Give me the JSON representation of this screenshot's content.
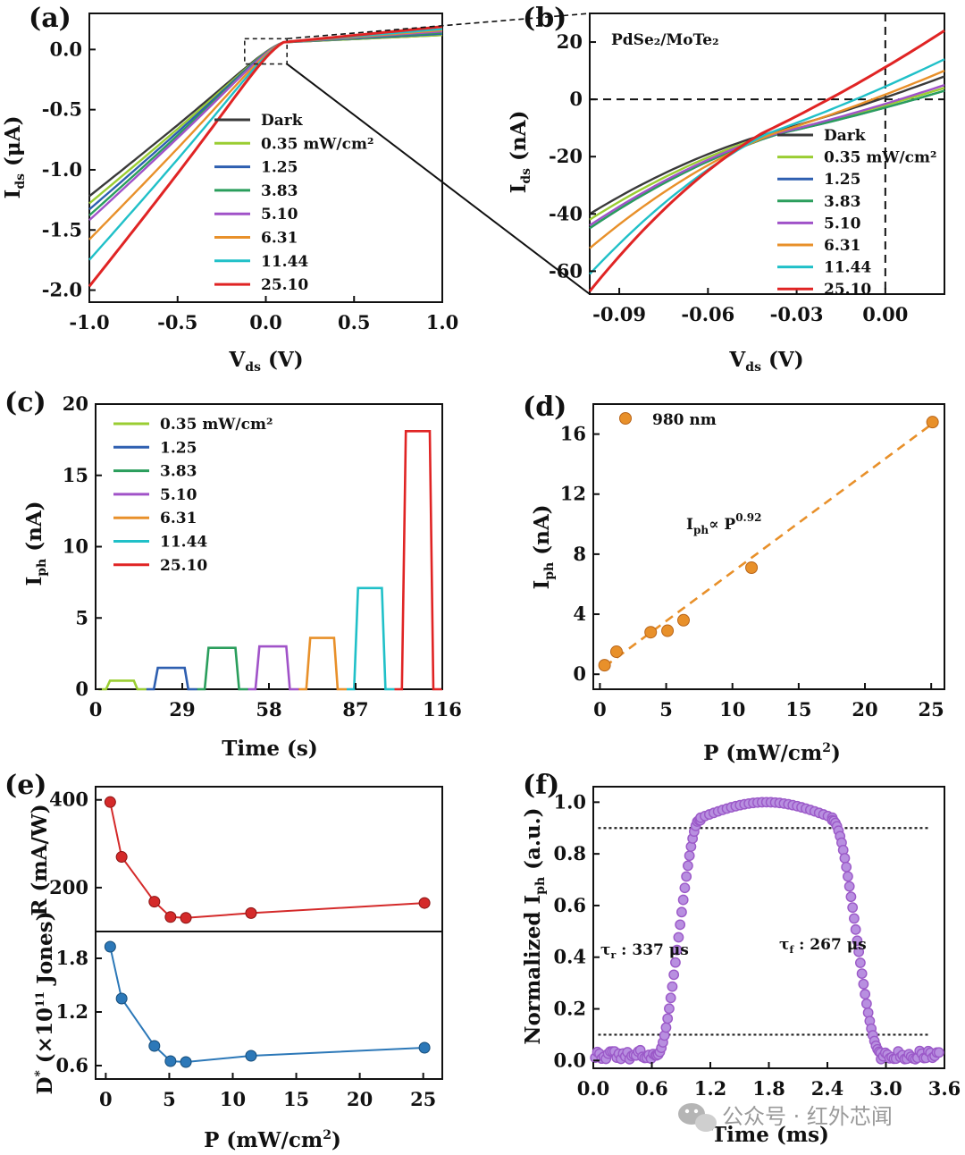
{
  "watermark": "公众号 · 红外芯闻",
  "chart_data": [
    {
      "id": "a",
      "panel_label": "(a)",
      "type": "line",
      "xlabel_main": "V",
      "xlabel_sub": "ds",
      "xlabel_unit": " (V)",
      "ylabel_main": "I",
      "ylabel_sub": "ds",
      "ylabel_unit": " (μA)",
      "xlim": [
        -1.0,
        1.0
      ],
      "ylim": [
        -2.1,
        0.3
      ],
      "xticks": [
        -1.0,
        -0.5,
        0.0,
        0.5,
        1.0
      ],
      "xtick_labels": [
        "-1.0",
        "-0.5",
        "0.0",
        "0.5",
        "1.0"
      ],
      "yticks": [
        0.0,
        -0.5,
        -1.0,
        -1.5,
        -2.0
      ],
      "ytick_labels": [
        "0.0",
        "-0.5",
        "-1.0",
        "-1.5",
        "-2.0"
      ],
      "series": [
        {
          "name": "Dark",
          "color": "#3a3a3a",
          "endpoint": -1.22,
          "end_right": 0.12
        },
        {
          "name": "0.35 mW/cm²",
          "color": "#9acd32",
          "endpoint": -1.28,
          "end_right": 0.12
        },
        {
          "name": "1.25",
          "color": "#2e5fb0",
          "endpoint": -1.33,
          "end_right": 0.13
        },
        {
          "name": "3.83",
          "color": "#2a9e5c",
          "endpoint": -1.38,
          "end_right": 0.14
        },
        {
          "name": "5.10",
          "color": "#a052c8",
          "endpoint": -1.42,
          "end_right": 0.15
        },
        {
          "name": "6.31",
          "color": "#e8902a",
          "endpoint": -1.58,
          "end_right": 0.16
        },
        {
          "name": "11.44",
          "color": "#20c0c8",
          "endpoint": -1.75,
          "end_right": 0.17
        },
        {
          "name": "25.10",
          "color": "#e02424",
          "endpoint": -1.97,
          "end_right": 0.19
        }
      ],
      "zoom_box": {
        "x": [
          -0.12,
          0.12
        ],
        "y": [
          -0.12,
          0.09
        ]
      }
    },
    {
      "id": "b",
      "panel_label": "(b)",
      "type": "line",
      "title": "PdSe₂/MoTe₂",
      "xlabel_main": "V",
      "xlabel_sub": "ds",
      "xlabel_unit": " (V)",
      "ylabel_main": "I",
      "ylabel_sub": "ds",
      "ylabel_unit": " (nA)",
      "xlim": [
        -0.1,
        0.02
      ],
      "ylim": [
        -68,
        30
      ],
      "xticks": [
        -0.09,
        -0.06,
        -0.03,
        0.0
      ],
      "xtick_labels": [
        "-0.09",
        "-0.06",
        "-0.03",
        "0.00"
      ],
      "yticks": [
        20,
        0,
        -20,
        -40,
        -60
      ],
      "ytick_labels": [
        "20",
        "0",
        "-20",
        "-40",
        "-60"
      ],
      "series": [
        {
          "name": "Dark",
          "color": "#3a3a3a",
          "left": -40,
          "cross": -0.04,
          "right": 8
        },
        {
          "name": "0.35 mW/cm²",
          "color": "#9acd32",
          "left": -42,
          "cross": -0.038,
          "right": 4
        },
        {
          "name": "1.25",
          "color": "#2e5fb0",
          "left": -45,
          "cross": -0.036,
          "right": 3
        },
        {
          "name": "3.83",
          "color": "#2a9e5c",
          "left": -45,
          "cross": -0.036,
          "right": 3
        },
        {
          "name": "5.10",
          "color": "#a052c8",
          "left": -44,
          "cross": -0.037,
          "right": 5
        },
        {
          "name": "6.31",
          "color": "#e8902a",
          "left": -52,
          "cross": -0.038,
          "right": 10
        },
        {
          "name": "11.44",
          "color": "#20c0c8",
          "left": -61,
          "cross": -0.04,
          "right": 14
        },
        {
          "name": "25.10",
          "color": "#e02424",
          "left": -67,
          "cross": -0.042,
          "right": 24
        }
      ]
    },
    {
      "id": "c",
      "panel_label": "(c)",
      "type": "line",
      "xlabel_main": "Time (s)",
      "ylabel_main": "I",
      "ylabel_sub": "ph",
      "ylabel_unit": " (nA)",
      "xlim": [
        0,
        116
      ],
      "ylim": [
        0,
        20
      ],
      "xticks": [
        0,
        29,
        58,
        87,
        116
      ],
      "xtick_labels": [
        "0",
        "29",
        "58",
        "87",
        "116"
      ],
      "yticks": [
        0,
        5,
        10,
        15,
        20
      ],
      "ytick_labels": [
        "0",
        "5",
        "10",
        "15",
        "20"
      ],
      "series": [
        {
          "name": "0.35 mW/cm²",
          "color": "#9acd32",
          "on": 4,
          "off": 14,
          "value": 0.6
        },
        {
          "name": "1.25",
          "color": "#2e5fb0",
          "on": 20,
          "off": 31,
          "value": 1.5
        },
        {
          "name": "3.83",
          "color": "#2a9e5c",
          "on": 37,
          "off": 48,
          "value": 2.9
        },
        {
          "name": "5.10",
          "color": "#a052c8",
          "on": 54,
          "off": 65,
          "value": 3.0
        },
        {
          "name": "6.31",
          "color": "#e8902a",
          "on": 71,
          "off": 81,
          "value": 3.6
        },
        {
          "name": "11.44",
          "color": "#20c0c8",
          "on": 87,
          "off": 97,
          "value": 7.1
        },
        {
          "name": "25.10",
          "color": "#e02424",
          "on": 103,
          "off": 113,
          "value": 18.1
        }
      ]
    },
    {
      "id": "d",
      "panel_label": "(d)",
      "type": "scatter",
      "xlabel_main": "P (mW/cm",
      "xlabel_sup": "2",
      "xlabel_unit": ")",
      "ylabel_main": "I",
      "ylabel_sub": "ph",
      "ylabel_unit": " (nA)",
      "xlim": [
        -0.5,
        26
      ],
      "ylim": [
        -1,
        18
      ],
      "xticks": [
        0,
        5,
        10,
        15,
        20,
        25
      ],
      "xtick_labels": [
        "0",
        "5",
        "10",
        "15",
        "20",
        "25"
      ],
      "yticks": [
        0,
        4,
        8,
        12,
        16
      ],
      "ytick_labels": [
        "0",
        "4",
        "8",
        "12",
        "16"
      ],
      "legend": "980 nm",
      "annotation_main": "I",
      "annotation_sub": "ph",
      "annotation_rest": "∝ P",
      "annotation_sup": "0.92",
      "color": "#e8902a",
      "x": [
        0.35,
        1.25,
        3.83,
        5.1,
        6.31,
        11.44,
        25.1
      ],
      "y": [
        0.6,
        1.5,
        2.8,
        2.9,
        3.6,
        7.1,
        16.8
      ],
      "fit": {
        "x": [
          0.35,
          25.1
        ],
        "y": [
          0.5,
          16.7
        ]
      }
    },
    {
      "id": "e",
      "panel_label": "(e)",
      "type": "line",
      "xlabel_main": "P (mW/cm",
      "xlabel_sup": "2",
      "xlabel_unit": ")",
      "xlim": [
        -0.8,
        26.5
      ],
      "xticks": [
        0,
        5,
        10,
        15,
        20,
        25
      ],
      "xtick_labels": [
        "0",
        "5",
        "10",
        "15",
        "20",
        "25"
      ],
      "x": [
        0.35,
        1.25,
        3.83,
        5.1,
        6.31,
        11.44,
        25.1
      ],
      "top": {
        "ylabel": "R (mA/W)",
        "ylim": [
          100,
          430
        ],
        "yticks": [
          400,
          200
        ],
        "ytick_labels": [
          "400",
          "200"
        ],
        "color": "#d42a2a",
        "values": [
          395,
          270,
          168,
          133,
          131,
          142,
          165
        ]
      },
      "bottom": {
        "ylabel_main": "D",
        "ylabel_sup_star": "*",
        "ylabel_rest": " (×10",
        "ylabel_sup": "11",
        "ylabel_end": " Jones)",
        "ylim": [
          0.45,
          2.1
        ],
        "yticks": [
          1.8,
          1.2,
          0.6
        ],
        "ytick_labels": [
          "1.8",
          "1.2",
          "0.6"
        ],
        "color": "#2c78b8",
        "values": [
          1.93,
          1.35,
          0.82,
          0.65,
          0.64,
          0.71,
          0.8
        ]
      }
    },
    {
      "id": "f",
      "panel_label": "(f)",
      "type": "scatter",
      "xlabel_main": "Time (ms)",
      "ylabel_main": "Normalized I",
      "ylabel_sub": "ph",
      "ylabel_unit": " (a.u.)",
      "xlim": [
        0,
        3.6
      ],
      "ylim": [
        -0.03,
        1.06
      ],
      "xticks": [
        0.0,
        0.6,
        1.2,
        1.8,
        2.4,
        3.0,
        3.6
      ],
      "xtick_labels": [
        "0.0",
        "0.6",
        "1.2",
        "1.8",
        "2.4",
        "3.0",
        "3.6"
      ],
      "yticks": [
        0.0,
        0.2,
        0.4,
        0.6,
        0.8,
        1.0
      ],
      "ytick_labels": [
        "0.0",
        "0.2",
        "0.4",
        "0.6",
        "0.8",
        "1.0"
      ],
      "color": "#9b59c8",
      "rise_label_main": "τ",
      "rise_label_sub": "r",
      "rise_label_rest": " : 337 μs",
      "fall_label_main": "τ",
      "fall_label_sub": "f",
      "fall_label_rest": " : 267 μs",
      "threshold_high": 0.9,
      "threshold_low": 0.1,
      "segments": {
        "baseline_start": [
          0.0,
          0.65
        ],
        "rise": [
          0.65,
          1.1
        ],
        "plateau": [
          1.1,
          2.45
        ],
        "fall": [
          2.45,
          2.95
        ],
        "baseline_end": [
          2.95,
          3.55
        ]
      }
    }
  ]
}
